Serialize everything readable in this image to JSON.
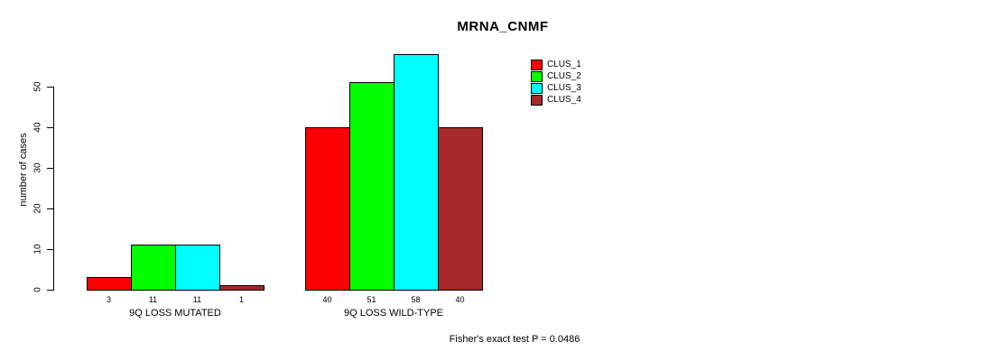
{
  "chart_data": {
    "type": "bar",
    "title": "MRNA_CNMF",
    "ylabel": "number of cases",
    "yticks": [
      0,
      10,
      20,
      30,
      40,
      50
    ],
    "ylim": [
      0,
      58
    ],
    "grid": false,
    "legend_position": "top-right",
    "series": [
      {
        "name": "CLUS_1",
        "color": "#ff0000"
      },
      {
        "name": "CLUS_2",
        "color": "#00ff00"
      },
      {
        "name": "CLUS_3",
        "color": "#00ffff"
      },
      {
        "name": "CLUS_4",
        "color": "#a52a2a"
      }
    ],
    "groups": [
      {
        "label": "9Q LOSS MUTATED",
        "values": [
          3,
          11,
          11,
          1
        ]
      },
      {
        "label": "9Q LOSS WILD-TYPE",
        "values": [
          40,
          51,
          58,
          40
        ]
      }
    ],
    "footnote": "Fisher's exact test P = 0.0486"
  }
}
